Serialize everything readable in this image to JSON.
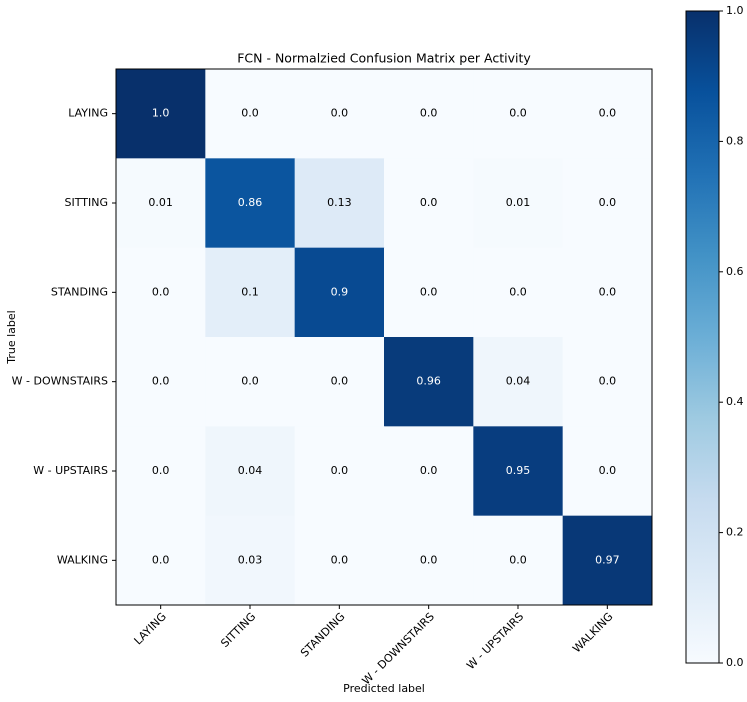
{
  "chart_data": {
    "type": "heatmap",
    "title": "FCN - Normalzied Confusion Matrix per Activity",
    "x_label": "Predicted label",
    "y_label": "True label",
    "categories": [
      "LAYING",
      "SITTING",
      "STANDING",
      "W - DOWNSTAIRS",
      "W - UPSTAIRS",
      "WALKING"
    ],
    "rows": [
      "LAYING",
      "SITTING",
      "STANDING",
      "W - DOWNSTAIRS",
      "W - UPSTAIRS",
      "WALKING"
    ],
    "values": [
      [
        1.0,
        0,
        0,
        0,
        0,
        0
      ],
      [
        0.01,
        0.86,
        0.13,
        0,
        0.01,
        0
      ],
      [
        0,
        0.1,
        0.9,
        0,
        0,
        0
      ],
      [
        0,
        0,
        0,
        0.96,
        0.04,
        0
      ],
      [
        0,
        0.04,
        0,
        0,
        0.95,
        0
      ],
      [
        0,
        0.03,
        0,
        0,
        0,
        0.97
      ]
    ],
    "value_labels": [
      [
        "1.0",
        "0.0",
        "0.0",
        "0.0",
        "0.0",
        "0.0"
      ],
      [
        "0.01",
        "0.86",
        "0.13",
        "0.0",
        "0.01",
        "0.0"
      ],
      [
        "0.0",
        "0.1",
        "0.9",
        "0.0",
        "0.0",
        "0.0"
      ],
      [
        "0.0",
        "0.0",
        "0.0",
        "0.96",
        "0.04",
        "0.0"
      ],
      [
        "0.0",
        "0.04",
        "0.0",
        "0.0",
        "0.95",
        "0.0"
      ],
      [
        "0.0",
        "0.03",
        "0.0",
        "0.0",
        "0.0",
        "0.97"
      ]
    ],
    "colormap": "Blues",
    "clim": [
      0,
      1
    ],
    "cticks": [
      {
        "value": 0,
        "label": "0.0"
      },
      {
        "value": 0.2,
        "label": "0.2"
      },
      {
        "value": 0.4,
        "label": "0.4"
      },
      {
        "value": 0.6,
        "label": "0.6"
      },
      {
        "value": 0.8,
        "label": "0.8"
      },
      {
        "value": 1,
        "label": "1.0"
      }
    ]
  }
}
